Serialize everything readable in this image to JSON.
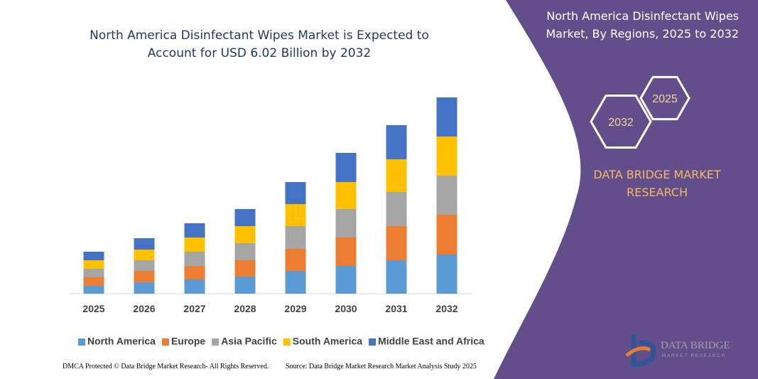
{
  "chart_data": {
    "type": "stacked_bar",
    "title": "North America Disinfectant Wipes Market is Expected to Account for USD 6.02 Billion by 2032",
    "categories": [
      "2025",
      "2026",
      "2027",
      "2028",
      "2029",
      "2030",
      "2031",
      "2032"
    ],
    "series": [
      {
        "name": "North America",
        "color": "#5b9bd5",
        "values": [
          11,
          16,
          20,
          24,
          32,
          39,
          47,
          55
        ]
      },
      {
        "name": "Europe",
        "color": "#ed7d31",
        "values": [
          12,
          16,
          19,
          23,
          31,
          40,
          48,
          56
        ]
      },
      {
        "name": "Asia Pacific",
        "color": "#a5a5a5",
        "values": [
          12,
          15,
          20,
          24,
          32,
          40,
          48,
          55
        ]
      },
      {
        "name": "South America",
        "color": "#ffc000",
        "values": [
          12,
          15,
          20,
          24,
          31,
          38,
          46,
          55
        ]
      },
      {
        "name": "Middle East and Africa",
        "color": "#4472c4",
        "values": [
          12,
          16,
          20,
          24,
          31,
          41,
          48,
          55
        ]
      }
    ],
    "ylim": [
      0,
      280
    ],
    "grid": false,
    "legend": "bottom"
  },
  "panel": {
    "title": "North America Disinfectant Wipes Market, By Regions, 2025 to 2032",
    "hexagons": [
      "2032",
      "2025"
    ],
    "brand": "DATA BRIDGE MARKET RESEARCH"
  },
  "footer": {
    "left": "DMCA Protected © Data Bridge Market Research- All Rights Reserved.",
    "right": "Source: Data Bridge Market Research Market Analysis Study 2025"
  },
  "logo": {
    "name": "DATA BRIDGE",
    "tagline": "MARKET RESEARCH"
  }
}
